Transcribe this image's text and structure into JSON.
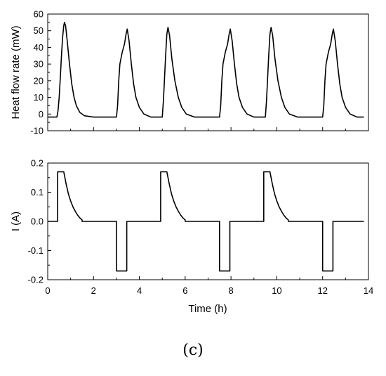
{
  "caption": "(c)",
  "chart_data": [
    {
      "type": "line",
      "title": "",
      "xlabel": "",
      "ylabel": "Heat flow rate (mW)",
      "xlim": [
        0,
        14
      ],
      "ylim": [
        -10,
        60
      ],
      "xticks": [
        0,
        2,
        4,
        6,
        8,
        10,
        12,
        14
      ],
      "xtick_labels": [],
      "yticks": [
        -10,
        0,
        10,
        20,
        30,
        40,
        50,
        60
      ],
      "ytick_labels": [
        "-10",
        "0",
        "10",
        "20",
        "30",
        "40",
        "50",
        "60"
      ],
      "grid": false,
      "series": [
        {
          "color": "#000000",
          "points": [
            [
              0.0,
              -1.8
            ],
            [
              0.4,
              -1.8
            ],
            [
              0.45,
              2
            ],
            [
              0.5,
              10
            ],
            [
              0.55,
              22
            ],
            [
              0.6,
              35
            ],
            [
              0.65,
              46
            ],
            [
              0.7,
              53
            ],
            [
              0.73,
              55
            ],
            [
              0.78,
              53
            ],
            [
              0.85,
              44
            ],
            [
              0.95,
              30
            ],
            [
              1.05,
              18
            ],
            [
              1.15,
              10
            ],
            [
              1.25,
              5
            ],
            [
              1.4,
              1
            ],
            [
              1.6,
              -1
            ],
            [
              2.0,
              -1.8
            ],
            [
              3.0,
              -1.8
            ],
            [
              3.05,
              5
            ],
            [
              3.1,
              20
            ],
            [
              3.15,
              30
            ],
            [
              3.25,
              37
            ],
            [
              3.35,
              42
            ],
            [
              3.42,
              48
            ],
            [
              3.47,
              51
            ],
            [
              3.55,
              44
            ],
            [
              3.65,
              30
            ],
            [
              3.75,
              18
            ],
            [
              3.85,
              10
            ],
            [
              4.0,
              4
            ],
            [
              4.2,
              0
            ],
            [
              4.5,
              -1.8
            ],
            [
              5.0,
              -1.8
            ],
            [
              5.05,
              8
            ],
            [
              5.1,
              22
            ],
            [
              5.15,
              36
            ],
            [
              5.2,
              48
            ],
            [
              5.25,
              52
            ],
            [
              5.32,
              47
            ],
            [
              5.42,
              33
            ],
            [
              5.55,
              20
            ],
            [
              5.7,
              10
            ],
            [
              5.85,
              4
            ],
            [
              6.05,
              0
            ],
            [
              6.4,
              -1.8
            ],
            [
              7.5,
              -1.8
            ],
            [
              7.55,
              5
            ],
            [
              7.6,
              20
            ],
            [
              7.65,
              30
            ],
            [
              7.75,
              37
            ],
            [
              7.85,
              42
            ],
            [
              7.92,
              48
            ],
            [
              7.97,
              51
            ],
            [
              8.05,
              44
            ],
            [
              8.15,
              30
            ],
            [
              8.25,
              18
            ],
            [
              8.35,
              10
            ],
            [
              8.5,
              4
            ],
            [
              8.7,
              0
            ],
            [
              9.0,
              -1.8
            ],
            [
              9.5,
              -1.8
            ],
            [
              9.55,
              8
            ],
            [
              9.6,
              22
            ],
            [
              9.65,
              36
            ],
            [
              9.7,
              48
            ],
            [
              9.75,
              52
            ],
            [
              9.82,
              47
            ],
            [
              9.92,
              33
            ],
            [
              10.05,
              20
            ],
            [
              10.2,
              10
            ],
            [
              10.35,
              4
            ],
            [
              10.55,
              0
            ],
            [
              10.9,
              -1.8
            ],
            [
              12.0,
              -1.8
            ],
            [
              12.05,
              5
            ],
            [
              12.1,
              20
            ],
            [
              12.15,
              30
            ],
            [
              12.25,
              37
            ],
            [
              12.35,
              42
            ],
            [
              12.42,
              48
            ],
            [
              12.47,
              51
            ],
            [
              12.55,
              44
            ],
            [
              12.65,
              30
            ],
            [
              12.75,
              18
            ],
            [
              12.85,
              10
            ],
            [
              13.0,
              4
            ],
            [
              13.2,
              0
            ],
            [
              13.5,
              -1.8
            ],
            [
              13.8,
              -1.8
            ]
          ]
        }
      ]
    },
    {
      "type": "line",
      "title": "",
      "xlabel": "Time (h)",
      "ylabel": "I (A)",
      "xlim": [
        0,
        14
      ],
      "ylim": [
        -0.2,
        0.2
      ],
      "xticks": [
        0,
        2,
        4,
        6,
        8,
        10,
        12,
        14
      ],
      "xtick_labels": [
        "0",
        "2",
        "4",
        "6",
        "8",
        "10",
        "12",
        "14"
      ],
      "yticks": [
        -0.2,
        -0.1,
        0.0,
        0.1,
        0.2
      ],
      "ytick_labels": [
        "-0.2",
        "-0.1",
        "0.0",
        "0.1",
        "0.2"
      ],
      "grid": false,
      "series": [
        {
          "color": "#000000",
          "points": [
            [
              0.0,
              0.0
            ],
            [
              0.43,
              0.0
            ],
            [
              0.43,
              0.17
            ],
            [
              0.7,
              0.17
            ],
            [
              0.8,
              0.13
            ],
            [
              0.9,
              0.095
            ],
            [
              1.0,
              0.07
            ],
            [
              1.1,
              0.05
            ],
            [
              1.2,
              0.035
            ],
            [
              1.3,
              0.022
            ],
            [
              1.4,
              0.012
            ],
            [
              1.5,
              0.005
            ],
            [
              1.5,
              0.0
            ],
            [
              3.0,
              0.0
            ],
            [
              3.0,
              -0.17
            ],
            [
              3.45,
              -0.17
            ],
            [
              3.45,
              0.0
            ],
            [
              4.93,
              0.0
            ],
            [
              4.93,
              0.17
            ],
            [
              5.2,
              0.17
            ],
            [
              5.3,
              0.13
            ],
            [
              5.4,
              0.095
            ],
            [
              5.5,
              0.07
            ],
            [
              5.6,
              0.05
            ],
            [
              5.7,
              0.035
            ],
            [
              5.8,
              0.022
            ],
            [
              5.9,
              0.012
            ],
            [
              6.0,
              0.005
            ],
            [
              6.0,
              0.0
            ],
            [
              7.5,
              0.0
            ],
            [
              7.5,
              -0.17
            ],
            [
              7.95,
              -0.17
            ],
            [
              7.95,
              0.0
            ],
            [
              9.43,
              0.0
            ],
            [
              9.43,
              0.17
            ],
            [
              9.7,
              0.17
            ],
            [
              9.8,
              0.13
            ],
            [
              9.9,
              0.095
            ],
            [
              10.0,
              0.07
            ],
            [
              10.1,
              0.05
            ],
            [
              10.2,
              0.035
            ],
            [
              10.3,
              0.022
            ],
            [
              10.4,
              0.012
            ],
            [
              10.5,
              0.005
            ],
            [
              10.5,
              0.0
            ],
            [
              12.0,
              0.0
            ],
            [
              12.0,
              -0.17
            ],
            [
              12.45,
              -0.17
            ],
            [
              12.45,
              0.0
            ],
            [
              13.8,
              0.0
            ]
          ]
        }
      ]
    }
  ]
}
